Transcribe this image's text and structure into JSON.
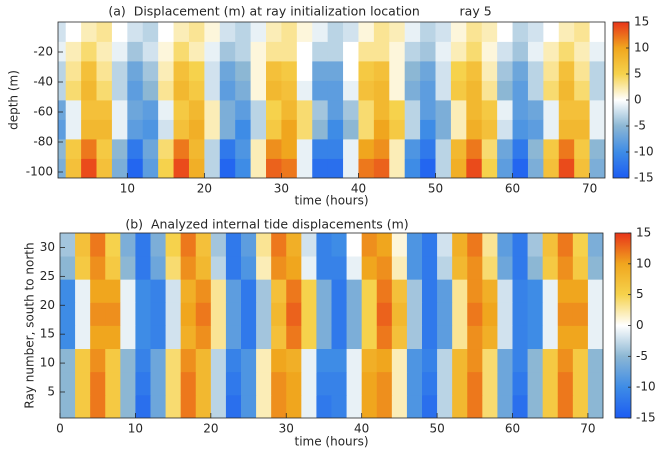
{
  "chart_data": [
    {
      "type": "heatmap",
      "title": "(a)  Displacement (m) at ray initialization location          ray 5",
      "xlabel": "time (hours)",
      "ylabel": "depth (m)",
      "xlim": [
        1,
        72
      ],
      "ylim": [
        -104,
        0
      ],
      "xticks": [
        10,
        20,
        30,
        40,
        50,
        60,
        70
      ],
      "yticks": [
        -100,
        -80,
        -60,
        -40,
        -20
      ],
      "clim": [
        -15,
        15
      ],
      "cticks": [
        -15,
        -10,
        -5,
        0,
        5,
        10,
        15
      ],
      "colormap": [
        "#1c5cf2",
        "#3e8ce6",
        "#8cb7d4",
        "#ffffff",
        "#f6d24c",
        "#f0a61e",
        "#e8341a"
      ],
      "x": [
        1,
        3,
        5,
        7,
        9,
        11,
        13,
        15,
        17,
        19,
        21,
        23,
        25,
        27,
        29,
        31,
        33,
        35,
        37,
        39,
        41,
        43,
        45,
        47,
        49,
        51,
        53,
        55,
        57,
        59,
        61,
        63,
        65,
        67,
        69,
        71
      ],
      "y": [
        -97.5,
        -84.5,
        -71.5,
        -58.5,
        -45.5,
        -32.5,
        -19.5,
        -6.5
      ],
      "values": [
        [
          -6,
          7,
          14,
          7,
          -6,
          -14,
          -8,
          5,
          14,
          9,
          -3,
          -14,
          -10,
          2,
          13,
          12,
          -1,
          -13,
          -13,
          -1,
          12,
          13,
          2,
          -10,
          -14,
          -3,
          9,
          14,
          5,
          -8,
          -14,
          -6,
          7,
          14,
          7,
          -6
        ],
        [
          -5,
          6,
          12,
          6,
          -5,
          -12,
          -7,
          4,
          12,
          8,
          -3,
          -12,
          -9,
          2,
          11,
          10,
          -1,
          -11,
          -11,
          -1,
          10,
          11,
          2,
          -9,
          -12,
          -3,
          8,
          12,
          4,
          -7,
          -12,
          -5,
          6,
          12,
          6,
          -5
        ],
        [
          -8,
          -1,
          8,
          8,
          -1,
          -8,
          -9,
          -2,
          7,
          9,
          2,
          -6,
          -10,
          -3,
          6,
          10,
          4,
          -5,
          -10,
          -5,
          4,
          10,
          6,
          -3,
          -10,
          -6,
          2,
          9,
          7,
          -2,
          -9,
          -8,
          -1,
          8,
          8,
          -1
        ],
        [
          -7,
          -1,
          7,
          7,
          -1,
          -7,
          -8,
          -1,
          6,
          8,
          2,
          -6,
          -8,
          -3,
          5,
          8,
          4,
          -4,
          -8,
          -4,
          4,
          8,
          5,
          -3,
          -8,
          -6,
          2,
          8,
          6,
          -1,
          -8,
          -7,
          -1,
          7,
          7,
          -1
        ],
        [
          -3,
          4,
          8,
          4,
          -3,
          -8,
          -5,
          3,
          8,
          6,
          -2,
          -8,
          -6,
          1,
          8,
          7,
          -1,
          -8,
          -8,
          -1,
          7,
          8,
          1,
          -6,
          -8,
          -2,
          6,
          8,
          3,
          -5,
          -8,
          -3,
          4,
          8,
          4,
          -3
        ],
        [
          -3,
          3,
          7,
          3,
          -3,
          -7,
          -4,
          2,
          7,
          5,
          -2,
          -7,
          -5,
          1,
          7,
          6,
          0,
          -7,
          -7,
          0,
          6,
          7,
          1,
          -5,
          -7,
          -2,
          5,
          7,
          2,
          -4,
          -7,
          -3,
          3,
          7,
          3,
          -3
        ],
        [
          -1,
          2,
          4,
          2,
          -1,
          -4,
          -2,
          1,
          4,
          2,
          -1,
          -4,
          -3,
          1,
          3,
          3,
          0,
          -3,
          -3,
          0,
          3,
          3,
          1,
          -3,
          -4,
          -1,
          2,
          4,
          1,
          -2,
          -4,
          -1,
          2,
          4,
          2,
          -1
        ],
        [
          -2,
          0,
          2,
          3,
          0,
          -2,
          -3,
          0,
          2,
          3,
          1,
          -2,
          -3,
          -1,
          2,
          3,
          1,
          -1,
          -3,
          -2,
          1,
          3,
          2,
          -1,
          -3,
          -2,
          1,
          3,
          2,
          0,
          -3,
          -2,
          0,
          2,
          3,
          0
        ]
      ]
    },
    {
      "type": "heatmap",
      "title": "(b)  Analyzed internal tide displacements (m)",
      "xlabel": "time (hours)",
      "ylabel": "Ray number, south to north",
      "xlim": [
        0,
        72
      ],
      "ylim": [
        0.5,
        32.5
      ],
      "xticks": [
        0,
        10,
        20,
        30,
        40,
        50,
        60,
        70
      ],
      "yticks": [
        5,
        10,
        15,
        20,
        25,
        30
      ],
      "clim": [
        -15,
        15
      ],
      "cticks": [
        -15,
        -10,
        -5,
        0,
        5,
        10,
        15
      ],
      "colormap": [
        "#1c5cf2",
        "#3e8ce6",
        "#8cb7d4",
        "#ffffff",
        "#f6d24c",
        "#f0a61e",
        "#e8341a"
      ],
      "x": [
        1,
        3,
        5,
        7,
        9,
        11,
        13,
        15,
        17,
        19,
        21,
        23,
        25,
        27,
        29,
        31,
        33,
        35,
        37,
        39,
        41,
        43,
        45,
        47,
        49,
        51,
        53,
        55,
        57,
        59,
        61,
        63,
        65,
        67,
        69,
        71
      ],
      "y": [
        2.5,
        6.5,
        10.5,
        14.5,
        18.5,
        22.5,
        26.5,
        30.5
      ],
      "values": [
        [
          -5,
          6,
          12,
          6,
          -5,
          -13,
          -7,
          4,
          12,
          8,
          -3,
          -13,
          -9,
          2,
          11,
          10,
          -1,
          -12,
          -11,
          -1,
          10,
          11,
          2,
          -9,
          -13,
          -3,
          8,
          12,
          4,
          -7,
          -13,
          -5,
          6,
          12,
          6,
          -5
        ],
        [
          -5,
          6,
          12,
          6,
          -5,
          -12,
          -7,
          4,
          12,
          8,
          -3,
          -12,
          -9,
          2,
          11,
          10,
          -1,
          -11,
          -11,
          -1,
          10,
          11,
          2,
          -9,
          -12,
          -3,
          8,
          12,
          4,
          -7,
          -12,
          -5,
          6,
          12,
          6,
          -5
        ],
        [
          -5,
          6,
          11,
          6,
          -5,
          -11,
          -7,
          4,
          11,
          8,
          -3,
          -11,
          -9,
          2,
          10,
          9,
          -1,
          -10,
          -10,
          -1,
          9,
          10,
          2,
          -9,
          -11,
          -3,
          8,
          11,
          4,
          -7,
          -11,
          -5,
          6,
          11,
          6,
          -5
        ],
        [
          -10,
          -1,
          10,
          10,
          -1,
          -10,
          -11,
          -2,
          9,
          11,
          3,
          -8,
          -12,
          -4,
          7,
          12,
          5,
          -6,
          -12,
          -6,
          5,
          12,
          7,
          -4,
          -12,
          -8,
          3,
          11,
          9,
          -2,
          -11,
          -10,
          -1,
          10,
          10,
          -1
        ],
        [
          -10,
          -1,
          11,
          11,
          -1,
          -10,
          -11,
          -2,
          10,
          12,
          3,
          -8,
          -12,
          -4,
          8,
          13,
          5,
          -6,
          -12,
          -6,
          5,
          13,
          8,
          -4,
          -12,
          -8,
          3,
          12,
          10,
          -2,
          -11,
          -10,
          -1,
          11,
          11,
          -1
        ],
        [
          -10,
          -1,
          10,
          10,
          -1,
          -10,
          -11,
          -2,
          9,
          11,
          3,
          -8,
          -12,
          -4,
          7,
          12,
          5,
          -6,
          -12,
          -6,
          5,
          12,
          7,
          -4,
          -12,
          -8,
          3,
          11,
          9,
          -2,
          -11,
          -10,
          -1,
          10,
          10,
          -1
        ],
        [
          -5,
          6,
          11,
          6,
          -5,
          -12,
          -7,
          4,
          11,
          8,
          -3,
          -12,
          -9,
          2,
          11,
          10,
          -1,
          -11,
          -11,
          -1,
          10,
          11,
          2,
          -9,
          -12,
          -3,
          8,
          11,
          4,
          -7,
          -12,
          -5,
          6,
          11,
          6,
          -5
        ],
        [
          -4,
          7,
          12,
          5,
          -6,
          -12,
          -6,
          5,
          12,
          7,
          -4,
          -12,
          -8,
          3,
          12,
          9,
          -2,
          -11,
          -10,
          0,
          11,
          10,
          1,
          -9,
          -12,
          -2,
          9,
          12,
          3,
          -8,
          -12,
          -4,
          7,
          12,
          5,
          -6
        ]
      ]
    }
  ]
}
